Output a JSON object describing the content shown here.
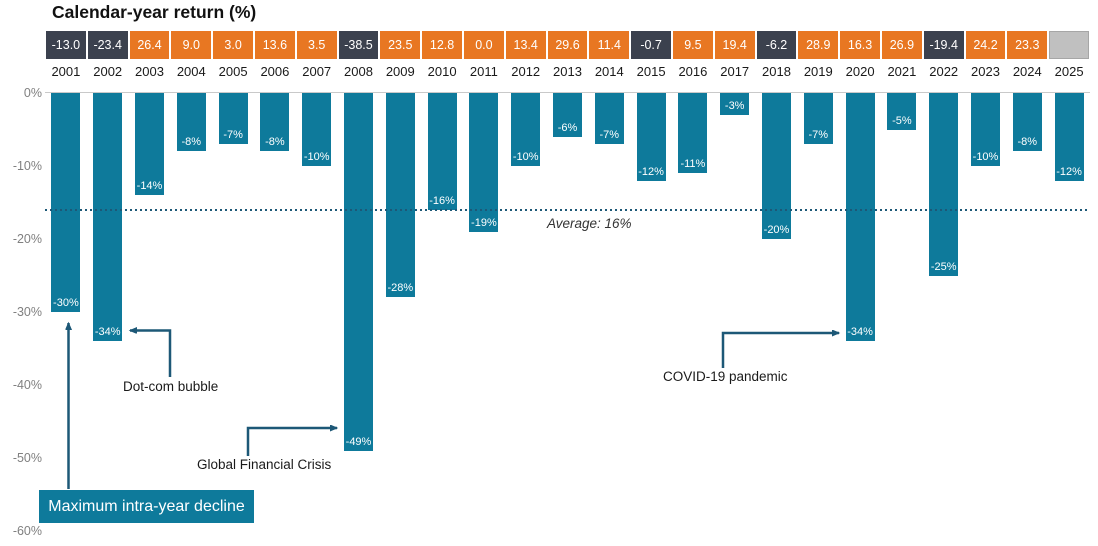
{
  "title": "Calendar-year return (%)",
  "average_label": "Average: 16%",
  "legend_label": "Maximum intra-year decline",
  "annotations": {
    "dotcom": "Dot-com bubble",
    "gfc": "Global Financial Crisis",
    "covid": "COVID-19 pandemic"
  },
  "y_axis_ticks": [
    "0%",
    "-10%",
    "-20%",
    "-30%",
    "-40%",
    "-50%",
    "-60%"
  ],
  "colors": {
    "bar_teal": "#0E7A9B",
    "positive_box_orange": "#E87722",
    "negative_box_dark": "#3B414E",
    "empty_box_gray": "#C0C0C0",
    "arrow_dark_teal": "#1D5877",
    "axis_text_gray": "#808080"
  },
  "chart_data": {
    "type": "bar",
    "title": "Calendar-year return (%)",
    "categories": [
      2001,
      2002,
      2003,
      2004,
      2005,
      2006,
      2007,
      2008,
      2009,
      2010,
      2011,
      2012,
      2013,
      2014,
      2015,
      2016,
      2017,
      2018,
      2019,
      2020,
      2021,
      2022,
      2023,
      2024,
      2025
    ],
    "series": [
      {
        "name": "Calendar-year return (%)",
        "values": [
          -13.0,
          -23.4,
          26.4,
          9.0,
          3.0,
          13.6,
          3.5,
          -38.5,
          23.5,
          12.8,
          0.0,
          13.4,
          29.6,
          11.4,
          -0.7,
          9.5,
          19.4,
          -6.2,
          28.9,
          16.3,
          26.9,
          -19.4,
          24.2,
          23.3,
          null
        ]
      },
      {
        "name": "Maximum intra-year decline (%)",
        "values": [
          -30,
          -34,
          -14,
          -8,
          -7,
          -8,
          -10,
          -49,
          -28,
          -16,
          -19,
          -10,
          -6,
          -7,
          -12,
          -11,
          -3,
          -20,
          -7,
          -34,
          -5,
          -25,
          -10,
          -8,
          -12
        ]
      }
    ],
    "average_line_value": -16,
    "average_line_label": "Average: 16%",
    "ylim": [
      -60,
      0
    ],
    "y_tick_step": 10,
    "grid": false,
    "annotated_events": [
      {
        "year": 2002,
        "label": "Dot-com bubble"
      },
      {
        "year": 2008,
        "label": "Global Financial Crisis"
      },
      {
        "year": 2020,
        "label": "COVID-19 pandemic"
      }
    ]
  }
}
